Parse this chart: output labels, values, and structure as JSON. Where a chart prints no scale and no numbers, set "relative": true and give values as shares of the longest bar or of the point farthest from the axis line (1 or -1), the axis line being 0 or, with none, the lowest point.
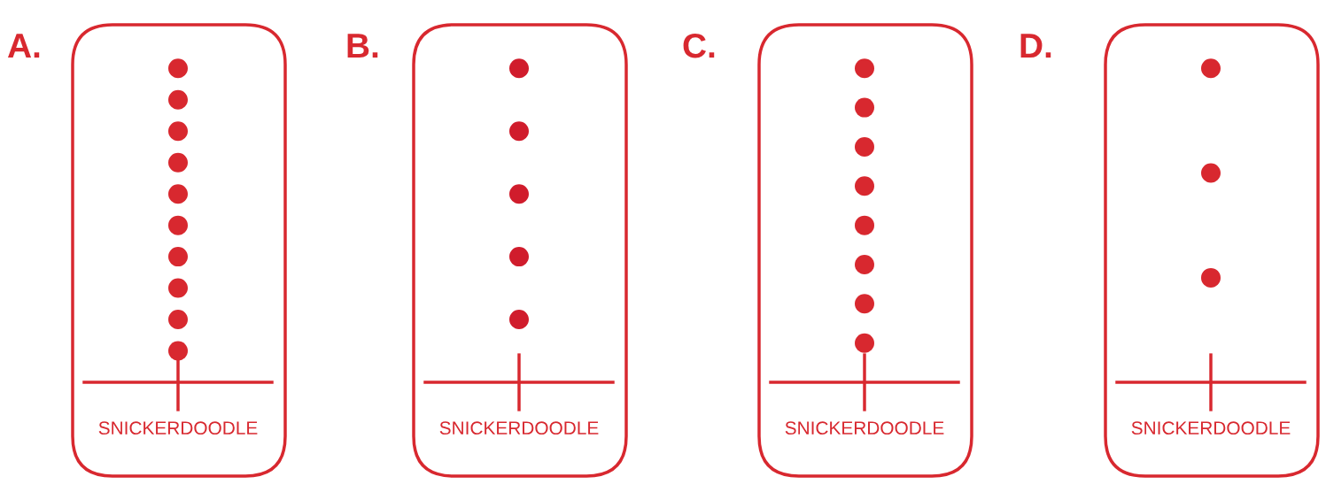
{
  "chart_data": [
    {
      "type": "scatter",
      "title": "A.",
      "categories": [
        "SNICKERDOODLE"
      ],
      "relative": true,
      "series": [
        {
          "color": "#d8282f",
          "x": [
            "SNICKERDOODLE",
            "SNICKERDOODLE",
            "SNICKERDOODLE",
            "SNICKERDOODLE",
            "SNICKERDOODLE",
            "SNICKERDOODLE",
            "SNICKERDOODLE",
            "SNICKERDOODLE",
            "SNICKERDOODLE",
            "SNICKERDOODLE"
          ],
          "values": [
            0.1,
            0.2,
            0.3,
            0.4,
            0.5,
            0.6,
            0.7,
            0.8,
            0.9,
            1.0
          ]
        }
      ],
      "tick_labels": "x",
      "marker": "circle"
    },
    {
      "type": "scatter",
      "title": "B.",
      "categories": [
        "SNICKERDOODLE"
      ],
      "relative": true,
      "series": [
        {
          "color": "#d01c2c",
          "x": [
            "SNICKERDOODLE",
            "SNICKERDOODLE",
            "SNICKERDOODLE",
            "SNICKERDOODLE",
            "SNICKERDOODLE"
          ],
          "values": [
            0.2,
            0.4,
            0.6,
            0.8,
            1.0
          ]
        }
      ],
      "tick_labels": "x",
      "marker": "circle"
    },
    {
      "type": "scatter",
      "title": "C.",
      "categories": [
        "SNICKERDOODLE"
      ],
      "relative": true,
      "series": [
        {
          "color": "#d8282f",
          "x": [
            "SNICKERDOODLE",
            "SNICKERDOODLE",
            "SNICKERDOODLE",
            "SNICKERDOODLE",
            "SNICKERDOODLE",
            "SNICKERDOODLE",
            "SNICKERDOODLE",
            "SNICKERDOODLE"
          ],
          "values": [
            0.125,
            0.25,
            0.375,
            0.5,
            0.625,
            0.75,
            0.875,
            1.0
          ]
        }
      ],
      "tick_labels": "x",
      "marker": "circle"
    },
    {
      "type": "scatter",
      "title": "D.",
      "categories": [
        "SNICKERDOODLE"
      ],
      "relative": true,
      "series": [
        {
          "color": "#d8282f",
          "x": [
            "SNICKERDOODLE",
            "SNICKERDOODLE",
            "SNICKERDOODLE"
          ],
          "values": [
            0.333,
            0.667,
            1.0
          ]
        }
      ],
      "tick_labels": "x",
      "marker": "circle"
    }
  ]
}
